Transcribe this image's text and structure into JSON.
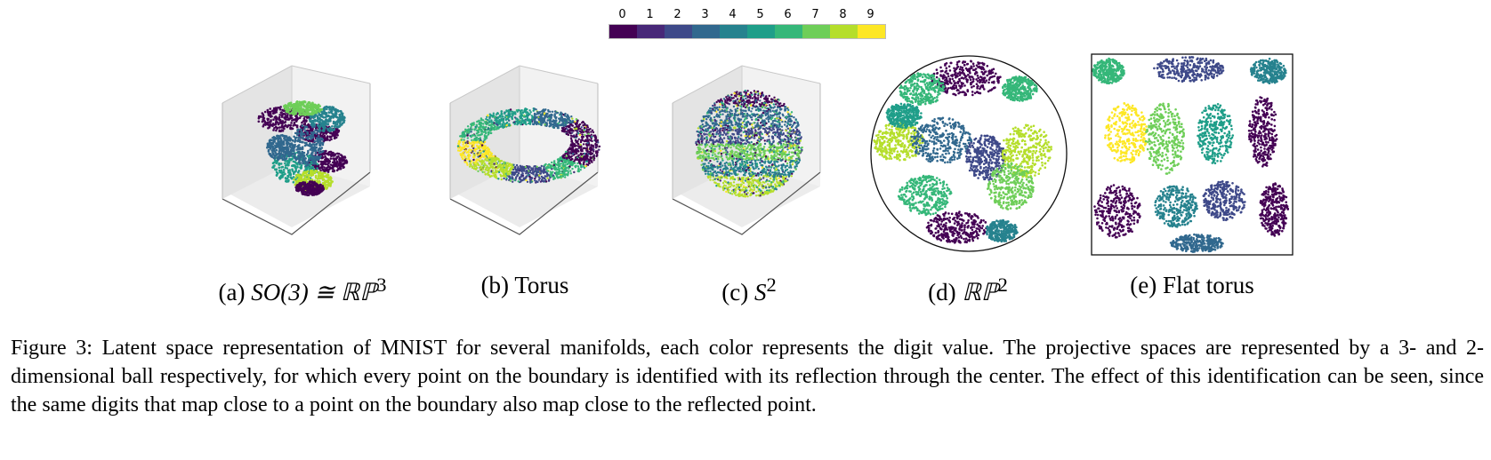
{
  "colorbar": {
    "labels": [
      "0",
      "1",
      "2",
      "3",
      "4",
      "5",
      "6",
      "7",
      "8",
      "9"
    ],
    "colors": [
      "#440154",
      "#482878",
      "#3e4989",
      "#31688e",
      "#26828e",
      "#1f9e89",
      "#35b779",
      "#6ece58",
      "#b5de2b",
      "#fde725"
    ]
  },
  "panels": [
    {
      "id": "a",
      "tag": "(a)",
      "caption_prefix": "(a) ",
      "caption_math": "SO(3) ≅ ℝℙ",
      "caption_sup": "3",
      "shape": "ball-3d"
    },
    {
      "id": "b",
      "tag": "(b)",
      "caption_prefix": "(b) ",
      "caption_math": "",
      "caption_text": "Torus",
      "shape": "torus-3d"
    },
    {
      "id": "c",
      "tag": "(c)",
      "caption_prefix": "(c) ",
      "caption_math": "S",
      "caption_sup": "2",
      "shape": "sphere-3d"
    },
    {
      "id": "d",
      "tag": "(d)",
      "caption_prefix": "(d) ",
      "caption_math": "ℝℙ",
      "caption_sup": "2",
      "shape": "disk-2d"
    },
    {
      "id": "e",
      "tag": "(e)",
      "caption_prefix": "(e) ",
      "caption_math": "",
      "caption_text": "Flat torus",
      "shape": "square-2d"
    }
  ],
  "caption": "Figure 3: Latent space representation of MNIST for several manifolds, each color represents the digit value. The projective spaces are represented by a 3- and 2-dimensional ball respectively, for which every point on the boundary is identified with its reflection through the center. The effect of this identification can be seen, since the same digits that map close to a point on the boundary also map close to the reflected point."
}
